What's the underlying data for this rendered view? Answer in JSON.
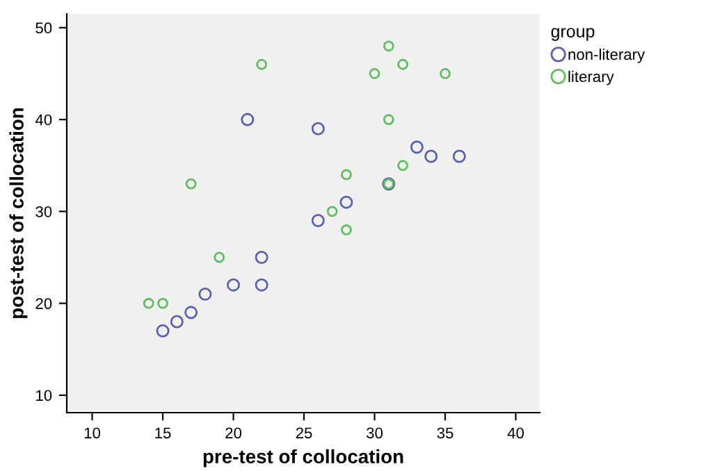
{
  "chart_data": {
    "type": "scatter",
    "xlabel": "pre-test of collocation",
    "ylabel": "post-test of collocation",
    "legend_title": "group",
    "legend": "right",
    "marker": "circle",
    "grid": false,
    "xlim": [
      8.2,
      41.7
    ],
    "ylim": [
      8.1,
      51.5
    ],
    "xticks": [
      10,
      15,
      20,
      25,
      30,
      35,
      40
    ],
    "yticks": [
      10,
      20,
      30,
      40,
      50
    ],
    "series": [
      {
        "name": "non-literary",
        "color": "#5b62ad",
        "x": [
          15,
          16,
          17,
          18,
          20,
          22,
          22,
          21,
          26,
          26,
          28,
          31,
          33,
          34,
          36
        ],
        "values": [
          17,
          18,
          19,
          21,
          22,
          22,
          25,
          40,
          39,
          29,
          31,
          33,
          37,
          36,
          36
        ]
      },
      {
        "name": "literary",
        "color": "#5fbf5f",
        "x": [
          14,
          15,
          19,
          17,
          22,
          27,
          28,
          28,
          32,
          31,
          30,
          31,
          32,
          35,
          31
        ],
        "values": [
          20,
          20,
          25,
          33,
          46,
          30,
          28,
          34,
          35,
          40,
          45,
          48,
          46,
          45,
          33
        ]
      }
    ]
  }
}
